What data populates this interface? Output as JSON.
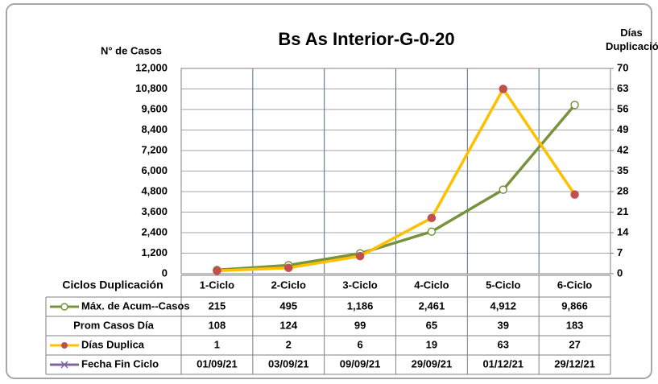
{
  "chart_data": {
    "type": "line",
    "title": "Bs As Interior-G-0-20",
    "y_label": "N° de Casos",
    "y2_label": "Días Duplicación",
    "table_label": "Ciclos Duplicación",
    "categories": [
      "1-Ciclo",
      "2-Ciclo",
      "3-Ciclo",
      "4-Ciclo",
      "5-Ciclo",
      "6-Ciclo"
    ],
    "series": [
      {
        "name": "Máx. de Acum--Casos",
        "color": "#77933c",
        "values": [
          215,
          495,
          1186,
          2461,
          4912,
          9866
        ],
        "value_labels": [
          "215",
          "495",
          "1,186",
          "2,461",
          "4,912",
          "9,866"
        ]
      },
      {
        "name": "Días Duplica",
        "color": "#ffc000",
        "marker_color": "#c0504d",
        "axis": "y2",
        "values": [
          1,
          2,
          6,
          19,
          63,
          27
        ]
      }
    ],
    "rows": [
      {
        "name": "Prom Casos Día",
        "values": [
          108,
          124,
          99,
          65,
          39,
          183
        ]
      },
      {
        "name": "Fecha Fin Ciclo",
        "color": "#8064a2",
        "values": [
          "01/09/21",
          "03/09/21",
          "09/09/21",
          "29/09/21",
          "01/12/21",
          "29/12/21"
        ]
      }
    ],
    "ylim": [
      0,
      12000
    ],
    "yticks": [
      0,
      {
        "value": 1200,
        "label": "1,200"
      },
      {
        "value": 2400,
        "label": "2,400"
      },
      {
        "value": 3600,
        "label": "3,600"
      },
      {
        "value": 4800,
        "label": "4,800"
      },
      {
        "value": 6000,
        "label": "6,000"
      },
      {
        "value": 7200,
        "label": "7,200"
      },
      {
        "value": 8400,
        "label": "8,400"
      },
      {
        "value": 9600,
        "label": "9,600"
      },
      {
        "value": 10800,
        "label": "10,800"
      },
      {
        "value": 12000,
        "label": "12,000"
      }
    ],
    "y2lim": [
      0,
      70
    ],
    "y2ticks": [
      0,
      7,
      14,
      21,
      28,
      35,
      42,
      49,
      56,
      63,
      70
    ],
    "grid": true
  }
}
